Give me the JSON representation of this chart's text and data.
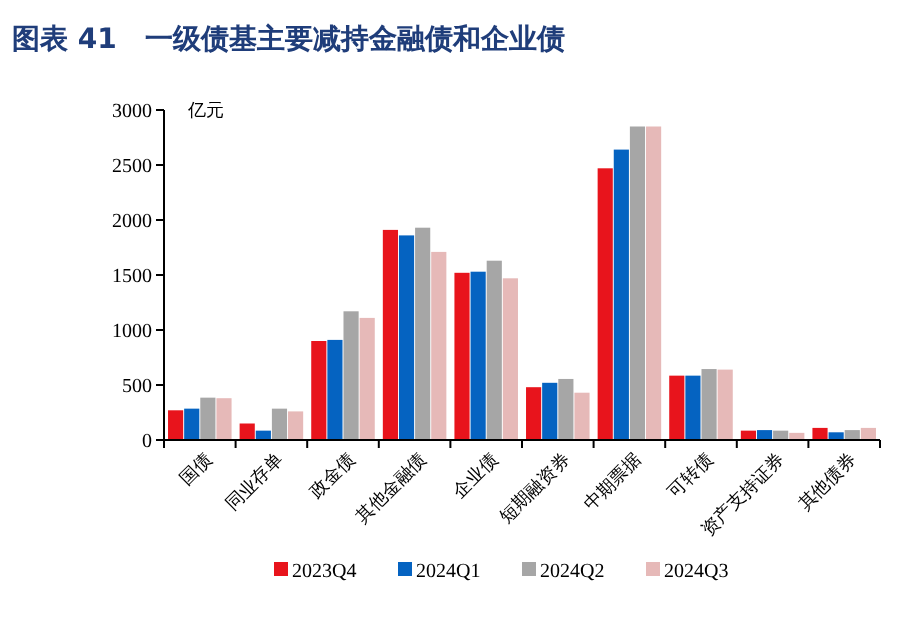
{
  "chart_data": {
    "type": "bar",
    "title": "图表 41　一级债基主要减持金融债和企业债",
    "ylabel": "亿元",
    "categories": [
      "国债",
      "同业存单",
      "政金债",
      "其他金融债",
      "企业债",
      "短期融资券",
      "中期票据",
      "可转债",
      "资产支持证券",
      "其他债券"
    ],
    "series": [
      {
        "name": "2023Q4",
        "color": "#e8141c",
        "values": [
          270,
          150,
          900,
          1910,
          1520,
          480,
          2470,
          585,
          85,
          110
        ]
      },
      {
        "name": "2024Q1",
        "color": "#0563c1",
        "values": [
          285,
          85,
          910,
          1860,
          1530,
          520,
          2640,
          585,
          90,
          70
        ]
      },
      {
        "name": "2024Q2",
        "color": "#a6a6a6",
        "values": [
          385,
          285,
          1170,
          1930,
          1630,
          555,
          2850,
          645,
          85,
          90
        ]
      },
      {
        "name": "2024Q3",
        "color": "#e6b9b8",
        "values": [
          380,
          260,
          1110,
          1710,
          1470,
          430,
          2850,
          640,
          65,
          110
        ]
      }
    ],
    "ylim": [
      0,
      3000
    ],
    "yticks": [
      0,
      500,
      1000,
      1500,
      2000,
      2500,
      3000
    ],
    "grid": false,
    "legend": "bottom"
  }
}
